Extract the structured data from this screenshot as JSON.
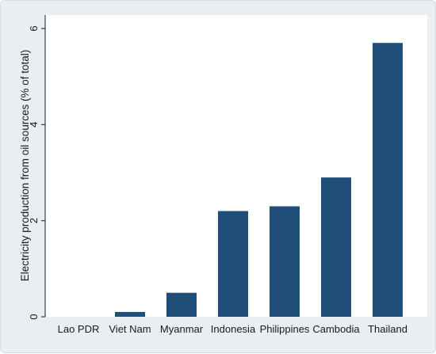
{
  "chart_data": {
    "type": "bar",
    "title": "",
    "xlabel": "",
    "ylabel": "Electricity production from oil sources (% of total)",
    "categories": [
      "Lao PDR",
      "Viet Nam",
      "Myanmar",
      "Indonesia",
      "Philippines",
      "Cambodia",
      "Thailand"
    ],
    "values": [
      0.0,
      0.1,
      0.5,
      2.2,
      2.3,
      2.9,
      5.7
    ],
    "ylim": [
      0,
      6
    ],
    "yticks": [
      0,
      2,
      4,
      6
    ],
    "grid": false,
    "legend": "none",
    "bar_color": "#1f4e79",
    "plot_background": "#ffffff",
    "figure_background": "#e9eef2"
  }
}
